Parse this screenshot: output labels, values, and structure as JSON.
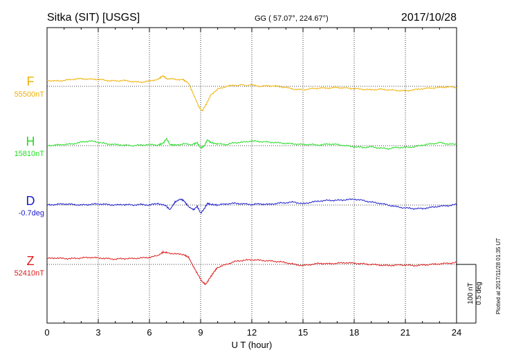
{
  "header": {
    "station": "Sitka (SIT)  [USGS]",
    "coords": "GG ( 57.07°, 224.67°)",
    "date": "2017/10/28"
  },
  "footer": {
    "plotted": "Plotted at 2017/11/28 01:35 UT",
    "scale_nt": "100 nT",
    "scale_deg": "0.5 deg"
  },
  "chart_data": {
    "type": "line",
    "xlabel": "U T (hour)",
    "xlim": [
      0,
      24
    ],
    "xticks": [
      0,
      3,
      6,
      9,
      12,
      15,
      18,
      21,
      24
    ],
    "grid": true,
    "series": [
      {
        "name": "F",
        "baseline_label": "55500nT",
        "color": "#f0b000",
        "x": [
          0,
          0.5,
          1,
          1.5,
          2,
          2.5,
          3,
          3.5,
          4,
          4.5,
          5,
          5.5,
          6,
          6.5,
          6.8,
          7,
          7.5,
          8,
          8.3,
          8.6,
          8.9,
          9.1,
          9.3,
          9.6,
          10,
          10.5,
          11,
          12,
          12.5,
          13,
          13.5,
          14,
          14.5,
          15,
          15.5,
          16,
          16.5,
          17,
          17.5,
          18,
          18.5,
          19,
          19.5,
          20,
          20.5,
          21,
          21.5,
          22,
          22.5,
          23,
          23.5,
          24
        ],
        "values": [
          10,
          9,
          10,
          12,
          13,
          12,
          12,
          10,
          9,
          10,
          8,
          7,
          9,
          12,
          18,
          13,
          12,
          11,
          5,
          -15,
          -35,
          -42,
          -32,
          -15,
          -5,
          0,
          2,
          2,
          0,
          1,
          0,
          -2,
          -5,
          -6,
          -4,
          -3,
          -3,
          -2,
          -3,
          -4,
          -5,
          -6,
          -5,
          -6,
          -7,
          -8,
          -6,
          -4,
          -3,
          -2,
          -1,
          -2
        ]
      },
      {
        "name": "H",
        "baseline_label": "15810nT",
        "color": "#22dd22",
        "x": [
          0,
          0.5,
          1,
          1.5,
          2,
          2.5,
          3,
          3.5,
          4,
          4.5,
          5,
          5.5,
          6,
          6.5,
          6.8,
          7,
          7.2,
          7.5,
          8,
          8.5,
          8.8,
          9,
          9.2,
          9.4,
          9.6,
          10,
          10.5,
          11,
          11.5,
          12,
          12.5,
          13,
          13.5,
          14,
          14.5,
          15,
          15.5,
          16,
          16.5,
          17,
          17.5,
          18,
          18.5,
          19,
          19.5,
          20,
          20.5,
          21,
          21.5,
          22,
          22.5,
          23,
          23.5,
          24
        ],
        "values": [
          0,
          1,
          2,
          3,
          6,
          8,
          6,
          3,
          2,
          1,
          0,
          1,
          2,
          1,
          4,
          12,
          2,
          1,
          3,
          2,
          5,
          -4,
          -1,
          10,
          5,
          3,
          2,
          5,
          6,
          8,
          7,
          6,
          5,
          4,
          3,
          2,
          2,
          1,
          3,
          2,
          0,
          -2,
          -3,
          -2,
          -4,
          -5,
          -3,
          -3,
          -2,
          1,
          3,
          5,
          3,
          2
        ]
      },
      {
        "name": "D",
        "baseline_label": "-0.7deg",
        "color": "#1a1acc",
        "x": [
          0,
          0.5,
          1,
          1.5,
          2,
          2.5,
          3,
          3.5,
          4,
          4.5,
          5,
          5.5,
          6,
          6.5,
          7,
          7.2,
          7.5,
          7.8,
          8,
          8.3,
          8.6,
          8.8,
          9,
          9.2,
          9.4,
          9.6,
          10,
          10.5,
          11,
          11.5,
          12,
          12.5,
          13,
          13.5,
          14,
          14.5,
          15,
          15.5,
          16,
          16.5,
          17,
          17.5,
          18,
          18.5,
          19,
          19.5,
          20,
          20.5,
          21,
          21.5,
          22,
          22.5,
          23,
          23.5,
          24
        ],
        "values": [
          0,
          1,
          2,
          1,
          0,
          1,
          2,
          1,
          0,
          1,
          0,
          1,
          0,
          3,
          -2,
          -8,
          5,
          10,
          8,
          -3,
          -8,
          -2,
          -14,
          -7,
          3,
          1,
          0,
          2,
          3,
          2,
          1,
          2,
          1,
          3,
          4,
          5,
          2,
          5,
          7,
          8,
          8,
          9,
          10,
          8,
          5,
          3,
          0,
          -3,
          -5,
          -6,
          -6,
          -4,
          -2,
          -1,
          1
        ]
      },
      {
        "name": "Z",
        "baseline_label": "52410nT",
        "color": "#dd1a1a",
        "x": [
          0,
          0.5,
          1,
          1.5,
          2,
          2.5,
          3,
          3.5,
          4,
          4.5,
          5,
          5.5,
          6,
          6.5,
          6.8,
          7,
          7.5,
          8,
          8.3,
          8.6,
          8.9,
          9.1,
          9.3,
          9.5,
          9.8,
          10,
          10.5,
          11,
          11.5,
          12,
          12.5,
          13,
          13.5,
          14,
          14.5,
          15,
          15.5,
          16,
          16.5,
          17,
          17.5,
          18,
          18.5,
          19,
          19.5,
          20,
          20.5,
          21,
          21.5,
          22,
          22.5,
          23,
          23.5,
          24
        ],
        "values": [
          10,
          11,
          10,
          10,
          11,
          12,
          11,
          10,
          9,
          10,
          10,
          11,
          12,
          15,
          21,
          20,
          18,
          17,
          12,
          -5,
          -20,
          -30,
          -34,
          -25,
          -12,
          -5,
          0,
          5,
          7,
          8,
          7,
          6,
          5,
          3,
          0,
          -2,
          0,
          2,
          1,
          2,
          3,
          2,
          1,
          0,
          -1,
          -2,
          -1,
          -1,
          -2,
          -1,
          0,
          1,
          2,
          3
        ]
      }
    ]
  }
}
